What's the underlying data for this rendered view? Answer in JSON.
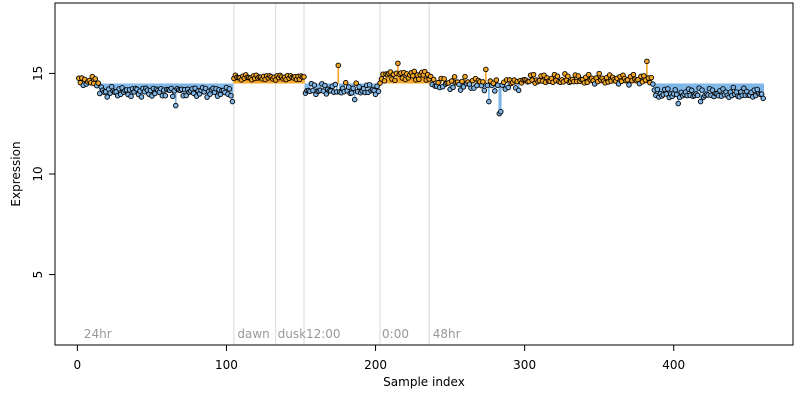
{
  "chart_data": {
    "type": "scatter",
    "xlabel": "Sample index",
    "ylabel": "Expression",
    "xlim": [
      -15,
      480
    ],
    "ylim": [
      1.5,
      18.5
    ],
    "x_ticks": [
      0,
      100,
      200,
      300,
      400
    ],
    "y_ticks": [
      5,
      10,
      15
    ],
    "baseline": 14.5,
    "grid": false,
    "colors": {
      "above": "#F5A623",
      "below": "#7EB6E8",
      "divider": "#d9d9d9",
      "phase_text": "#999999"
    },
    "dividers": [
      105,
      133,
      152,
      203,
      236
    ],
    "phase_labels": [
      {
        "x": 3,
        "text": "24hr"
      },
      {
        "x": 106,
        "text": "dawn"
      },
      {
        "x": 133,
        "text": "dusk"
      },
      {
        "x": 152,
        "text": "12:00"
      },
      {
        "x": 203,
        "text": "0:00"
      },
      {
        "x": 237,
        "text": "48hr"
      }
    ],
    "segments": [
      {
        "x0": 1,
        "x1": 14,
        "base": 14.6,
        "amp": 0.3
      },
      {
        "x0": 15,
        "x1": 104,
        "base": 14.1,
        "amp": 0.3
      },
      {
        "x0": 105,
        "x1": 152,
        "base": 14.8,
        "amp": 0.15
      },
      {
        "x0": 153,
        "x1": 203,
        "base": 14.2,
        "amp": 0.35
      },
      {
        "x0": 204,
        "x1": 236,
        "base": 14.9,
        "amp": 0.3
      },
      {
        "x0": 237,
        "x1": 300,
        "base": 14.5,
        "amp": 0.4
      },
      {
        "x0": 301,
        "x1": 386,
        "base": 14.7,
        "amp": 0.3
      },
      {
        "x0": 387,
        "x1": 460,
        "base": 14.0,
        "amp": 0.3
      }
    ],
    "outliers": [
      {
        "x": 66,
        "y": 13.4
      },
      {
        "x": 104,
        "y": 13.6
      },
      {
        "x": 175,
        "y": 15.4
      },
      {
        "x": 186,
        "y": 13.7
      },
      {
        "x": 215,
        "y": 15.5
      },
      {
        "x": 274,
        "y": 15.2
      },
      {
        "x": 276,
        "y": 13.6
      },
      {
        "x": 283,
        "y": 13.0
      },
      {
        "x": 284,
        "y": 13.1
      },
      {
        "x": 382,
        "y": 15.6
      },
      {
        "x": 403,
        "y": 13.5
      },
      {
        "x": 418,
        "y": 13.6
      }
    ]
  }
}
